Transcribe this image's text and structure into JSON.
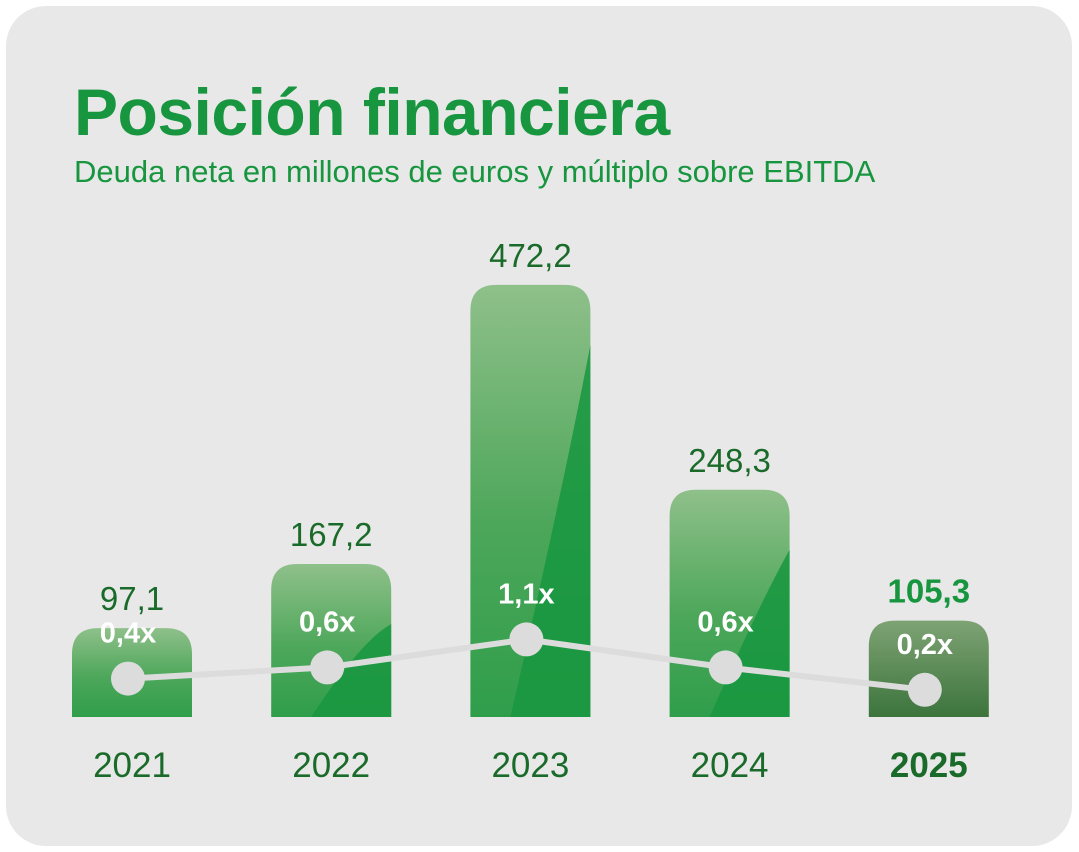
{
  "title": "Posición financiera",
  "subtitle": "Deuda neta en millones de euros y múltiplo sobre EBITDA",
  "chart_data": {
    "type": "bar",
    "title": "Posición financiera",
    "subtitle": "Deuda neta en millones de euros y múltiplo sobre EBITDA",
    "categories": [
      "2021",
      "2022",
      "2023",
      "2024",
      "2025"
    ],
    "series": [
      {
        "values": [
          97.1,
          167.2,
          472.2,
          248.3,
          105.3
        ],
        "labels": [
          "97,1",
          "167,2",
          "472,2",
          "248,3",
          "105,3"
        ]
      },
      {
        "type": "line",
        "values": [
          0.4,
          0.6,
          1.1,
          0.6,
          0.2
        ],
        "labels": [
          "0,4x",
          "0,6x",
          "1,1x",
          "0,6x",
          "0,2x"
        ]
      }
    ],
    "highlight_category": "2025",
    "grid": false,
    "colors": {
      "bar": "#17963f",
      "bar_highlight": "#3f7a3f",
      "line": "#dcdcdc",
      "text": "#1a6b2a",
      "highlight_label": "#17963f"
    }
  }
}
